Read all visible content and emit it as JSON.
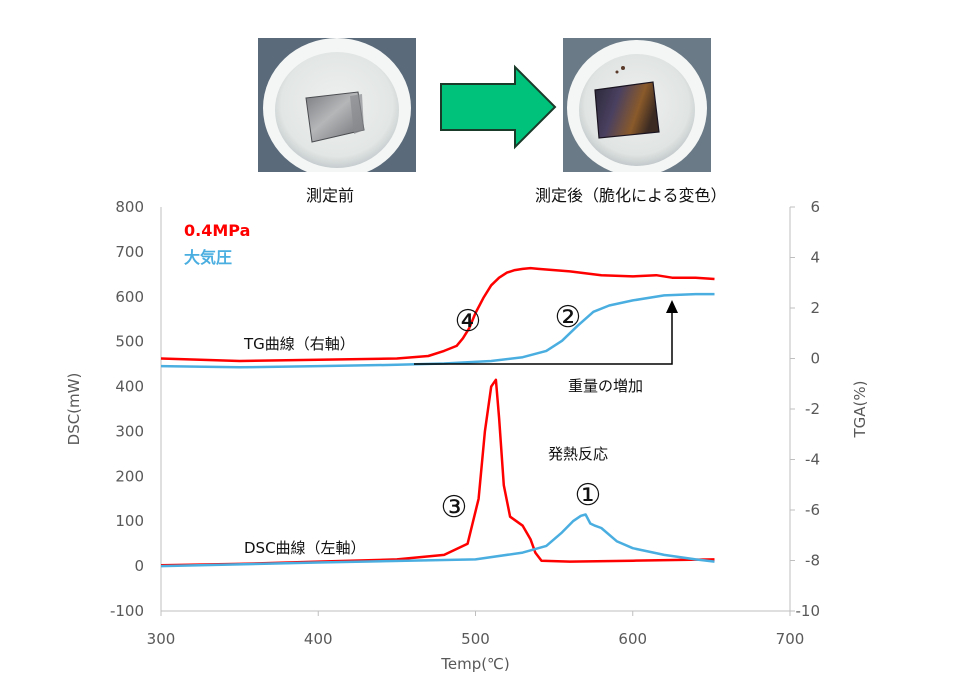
{
  "photos": {
    "before_caption": "測定前",
    "after_caption": "測定後（脆化による変色）"
  },
  "chart_data": {
    "type": "line",
    "xlabel": "Temp(℃)",
    "ylabel_left": "DSC(mW)",
    "ylabel_right": "TGA(%)",
    "xlim": [
      300,
      700
    ],
    "ylim_left": [
      -100,
      800
    ],
    "ylim_right": [
      -10,
      6
    ],
    "x_ticks": [
      "300",
      "400",
      "500",
      "600",
      "700"
    ],
    "y_left_ticks": [
      "-100",
      "0",
      "100",
      "200",
      "300",
      "400",
      "500",
      "600",
      "700",
      "800"
    ],
    "y_right_ticks": [
      "-10",
      "-8",
      "-6",
      "-4",
      "-2",
      "0",
      "2",
      "4",
      "6"
    ],
    "legend": [
      {
        "label": "0.4MPa",
        "color": "#ff0000"
      },
      {
        "label": "大気圧",
        "color": "#4aaee0"
      }
    ],
    "colors": {
      "pressure": "#ff0000",
      "atm": "#4aaee0"
    },
    "annotations": {
      "tg_curve": "TG曲線（右軸）",
      "dsc_curve": "DSC曲線（左軸）",
      "weight_gain": "重量の増加",
      "exothermic": "発熱反応",
      "m1": "①",
      "m2": "②",
      "m3": "③",
      "m4": "④"
    },
    "series": [
      {
        "name": "0.4MPa",
        "axis": "right",
        "curve": "TG",
        "x": [
          300,
          350,
          400,
          450,
          470,
          480,
          488,
          492,
          496,
          500,
          505,
          510,
          515,
          520,
          525,
          530,
          535,
          540,
          560,
          580,
          600,
          615,
          625,
          640,
          652
        ],
        "y": [
          0.0,
          -0.1,
          -0.05,
          0.0,
          0.1,
          0.3,
          0.5,
          0.8,
          1.2,
          1.8,
          2.4,
          2.9,
          3.2,
          3.4,
          3.5,
          3.55,
          3.58,
          3.55,
          3.45,
          3.3,
          3.25,
          3.3,
          3.2,
          3.2,
          3.15
        ]
      },
      {
        "name": "大気圧",
        "axis": "right",
        "curve": "TG",
        "x": [
          300,
          350,
          400,
          450,
          480,
          510,
          530,
          545,
          555,
          565,
          575,
          585,
          600,
          620,
          640,
          652
        ],
        "y": [
          -0.3,
          -0.35,
          -0.3,
          -0.25,
          -0.2,
          -0.1,
          0.05,
          0.3,
          0.7,
          1.3,
          1.85,
          2.1,
          2.3,
          2.5,
          2.55,
          2.55
        ]
      },
      {
        "name": "0.4MPa",
        "axis": "left",
        "curve": "DSC",
        "x": [
          300,
          350,
          400,
          450,
          480,
          495,
          502,
          506,
          510,
          513,
          515,
          518,
          522,
          530,
          535,
          538,
          542,
          560,
          600,
          652
        ],
        "y": [
          2,
          5,
          10,
          15,
          25,
          50,
          150,
          300,
          400,
          415,
          330,
          180,
          110,
          90,
          60,
          30,
          12,
          10,
          12,
          15
        ]
      },
      {
        "name": "大気圧",
        "axis": "left",
        "curve": "DSC",
        "x": [
          300,
          400,
          500,
          530,
          545,
          555,
          562,
          567,
          570,
          573,
          576,
          580,
          590,
          600,
          620,
          640,
          652
        ],
        "y": [
          0,
          8,
          15,
          30,
          45,
          75,
          100,
          112,
          115,
          95,
          90,
          85,
          55,
          40,
          25,
          15,
          10
        ]
      }
    ]
  }
}
